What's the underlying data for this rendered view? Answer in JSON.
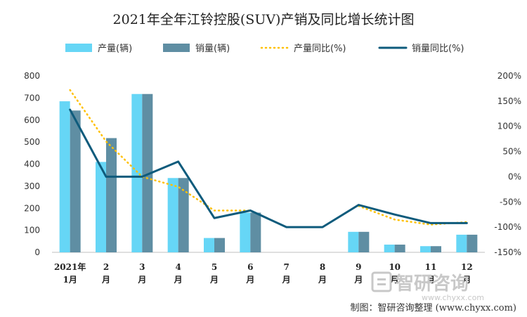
{
  "chart_data": {
    "type": "bar",
    "title": "2021年全年江铃控股(SUV)产销及同比增长统计图",
    "categories": [
      [
        "2021年",
        "1月"
      ],
      [
        "2",
        "月"
      ],
      [
        "3",
        "月"
      ],
      [
        "4",
        "月"
      ],
      [
        "5",
        "月"
      ],
      [
        "6",
        "月"
      ],
      [
        "7",
        "月"
      ],
      [
        "8",
        "月"
      ],
      [
        "9",
        "月"
      ],
      [
        "10",
        "月"
      ],
      [
        "11",
        "月"
      ],
      [
        "12",
        "月"
      ]
    ],
    "left_axis": {
      "ylim": [
        0,
        800
      ],
      "ticks": [
        0,
        100,
        200,
        300,
        400,
        500,
        600,
        700,
        800
      ]
    },
    "right_axis": {
      "ylim": [
        -150,
        200
      ],
      "ticks": [
        "200%",
        "150%",
        "100%",
        "50%",
        "0%",
        "-50%",
        "-100%",
        "-150%"
      ],
      "tick_values": [
        200,
        150,
        100,
        50,
        0,
        -50,
        -100,
        -150
      ]
    },
    "series": [
      {
        "name": "产量(辆)",
        "type": "bar",
        "axis": "left",
        "color": "#66d6f6",
        "values": [
          685,
          410,
          718,
          337,
          65,
          180,
          0,
          0,
          93,
          35,
          28,
          80
        ]
      },
      {
        "name": "销量(辆)",
        "type": "bar",
        "axis": "left",
        "color": "#5f8ea3",
        "values": [
          643,
          518,
          718,
          337,
          65,
          180,
          0,
          0,
          93,
          35,
          28,
          80
        ]
      },
      {
        "name": "产量同比(%)",
        "type": "line",
        "style": "dotted",
        "axis": "right",
        "color": "#ffc000",
        "values": [
          172,
          70,
          0,
          -20,
          -67,
          -67,
          null,
          null,
          -58,
          -85,
          -95,
          -90
        ]
      },
      {
        "name": "销量同比(%)",
        "type": "line",
        "style": "solid",
        "axis": "right",
        "color": "#0e5b7c",
        "values": [
          133,
          0,
          0,
          30,
          -82,
          -67,
          -100,
          -100,
          -56,
          -75,
          -92,
          -92
        ]
      }
    ],
    "grid": false,
    "legend": "top"
  },
  "credit": "制图：智研咨询整理 (www.chyxx.com)",
  "watermark": {
    "brand": "智研咨询",
    "url": "www.chyxx.com"
  }
}
